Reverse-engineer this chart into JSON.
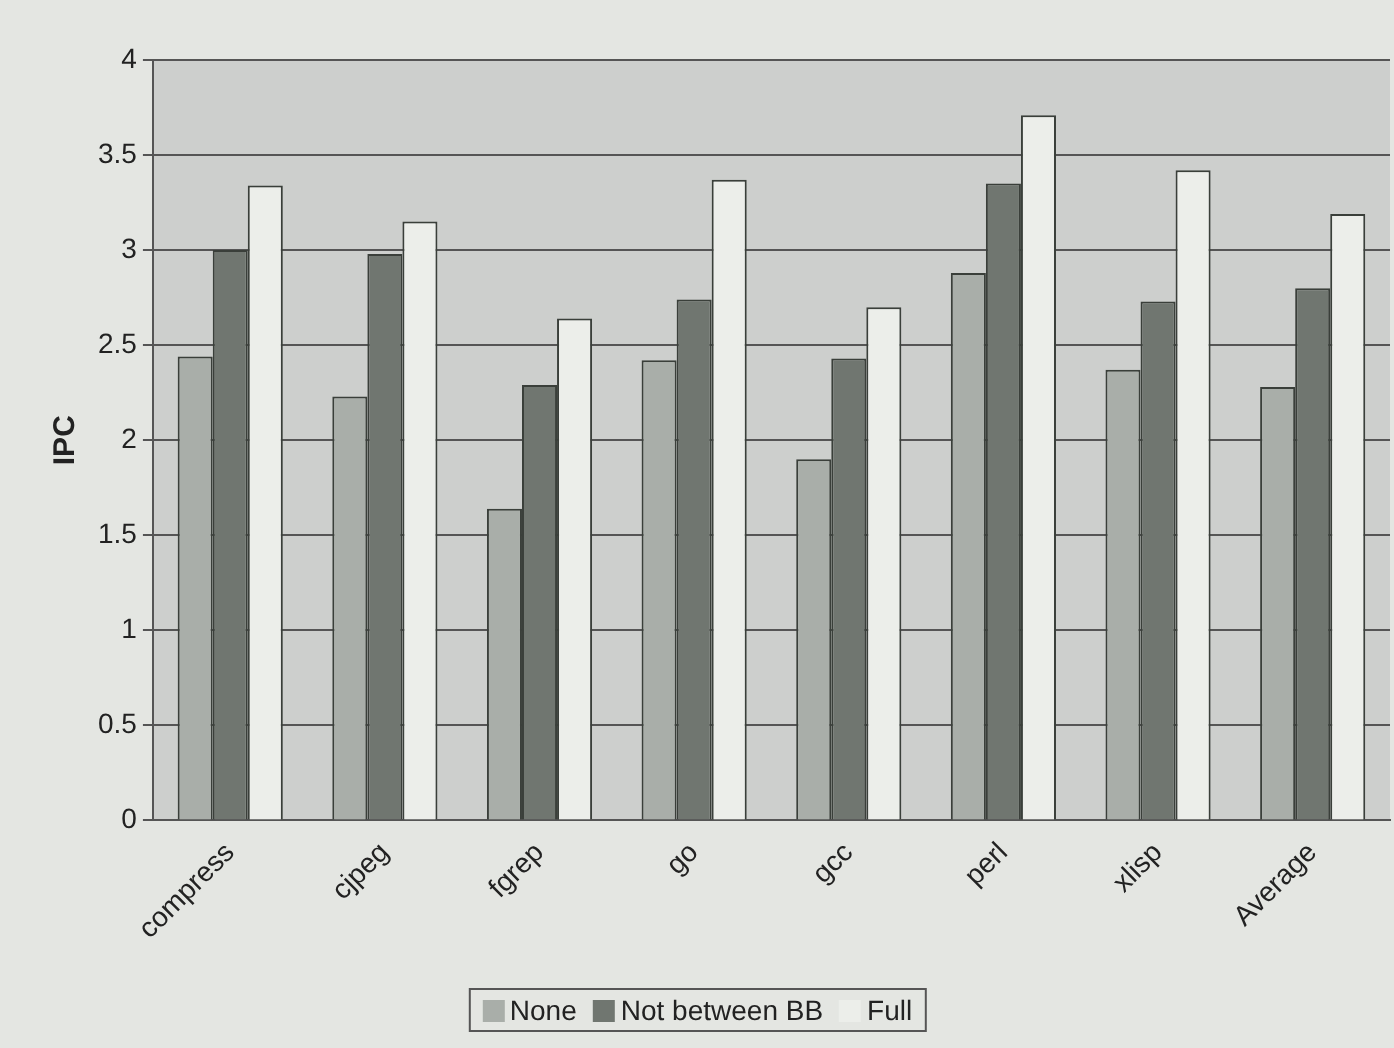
{
  "chart_data": {
    "type": "bar",
    "ylabel": "IPC",
    "categories": [
      "compress",
      "cjpeg",
      "fgrep",
      "go",
      "gcc",
      "perl",
      "xlisp",
      "Average"
    ],
    "series": [
      {
        "name": "None",
        "color": "#a9aea9",
        "values": [
          2.44,
          2.23,
          1.64,
          2.42,
          1.9,
          2.88,
          2.37,
          2.28
        ]
      },
      {
        "name": "Not between BB",
        "color": "#707670",
        "values": [
          3.0,
          2.98,
          2.29,
          2.74,
          2.43,
          3.35,
          2.73,
          2.8
        ]
      },
      {
        "name": "Full",
        "color": "#eceeea",
        "values": [
          3.34,
          3.15,
          2.64,
          3.37,
          2.7,
          3.71,
          3.42,
          3.19
        ]
      }
    ],
    "ylim": [
      0,
      4
    ],
    "yticks": [
      0,
      0.5,
      1,
      1.5,
      2,
      2.5,
      3,
      3.5,
      4
    ],
    "grid": "y",
    "legend": "bottom"
  }
}
